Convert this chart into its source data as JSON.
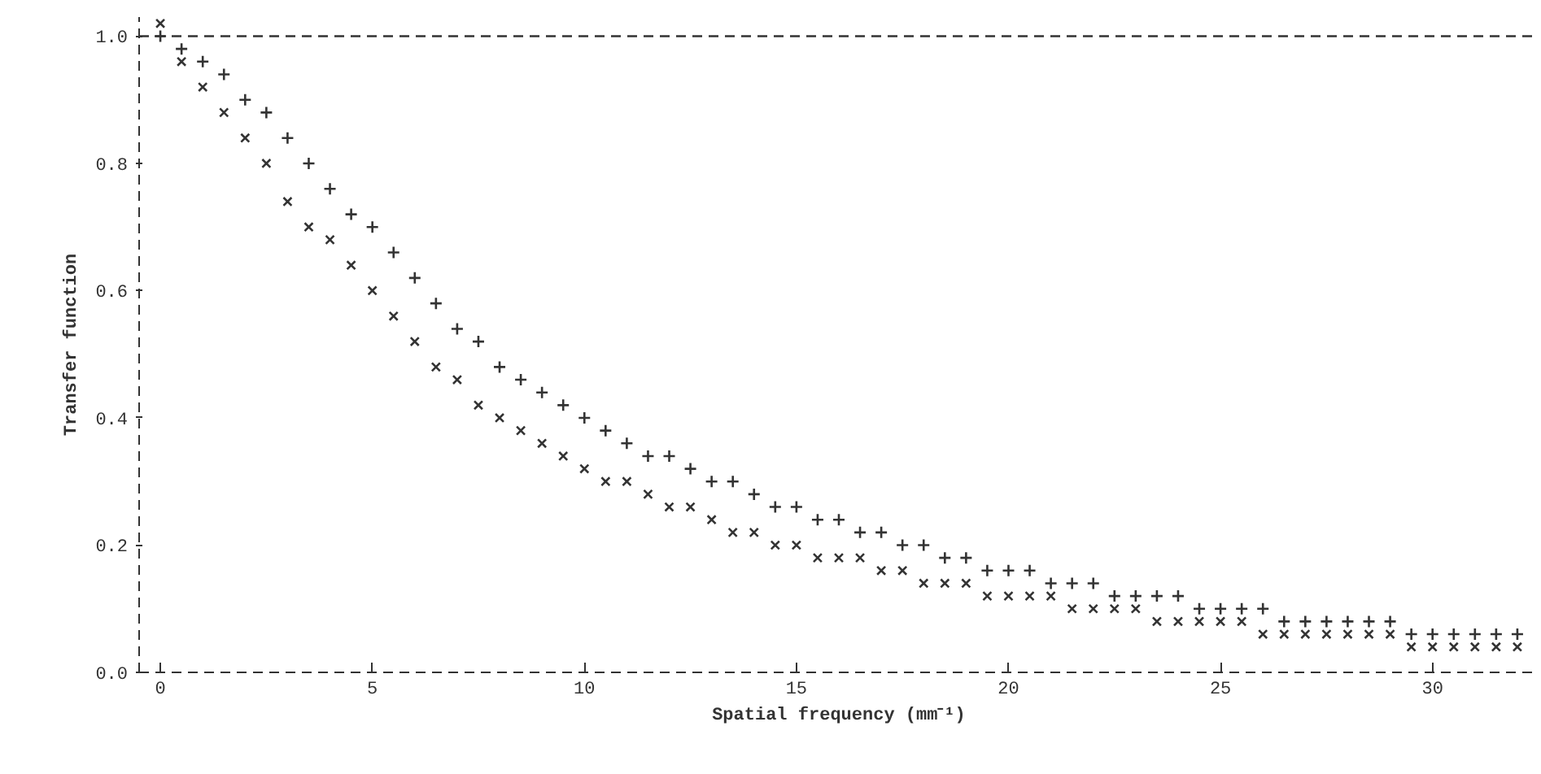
{
  "chart_data": {
    "type": "scatter",
    "xlabel": "Spatial frequency (mm⁻¹)",
    "ylabel": "Transfer function",
    "x": [
      0,
      0.5,
      1,
      1.5,
      2,
      2.5,
      3,
      3.5,
      4,
      4.5,
      5,
      5.5,
      6,
      6.5,
      7,
      7.5,
      8,
      8.5,
      9,
      9.5,
      10,
      10.5,
      11,
      11.5,
      12,
      12.5,
      13,
      13.5,
      14,
      14.5,
      15,
      15.5,
      16,
      16.5,
      17,
      17.5,
      18,
      18.5,
      19,
      19.5,
      20,
      20.5,
      21,
      21.5,
      22,
      22.5,
      23,
      23.5,
      24,
      24.5,
      25,
      25.5,
      26,
      26.5,
      27,
      27.5,
      28,
      28.5,
      29,
      29.5,
      30,
      30.5,
      31,
      31.5,
      32
    ],
    "series": [
      {
        "color": "#333333",
        "marker": "cross",
        "values": [
          1.0,
          0.98,
          0.96,
          0.94,
          0.9,
          0.88,
          0.84,
          0.8,
          0.76,
          0.72,
          0.7,
          0.66,
          0.62,
          0.58,
          0.54,
          0.52,
          0.48,
          0.46,
          0.44,
          0.42,
          0.4,
          0.38,
          0.36,
          0.34,
          0.34,
          0.32,
          0.3,
          0.3,
          0.28,
          0.26,
          0.26,
          0.24,
          0.24,
          0.22,
          0.22,
          0.2,
          0.2,
          0.18,
          0.18,
          0.16,
          0.16,
          0.16,
          0.14,
          0.14,
          0.14,
          0.12,
          0.12,
          0.12,
          0.12,
          0.1,
          0.1,
          0.1,
          0.1,
          0.08,
          0.08,
          0.08,
          0.08,
          0.08,
          0.08,
          0.06,
          0.06,
          0.06,
          0.06,
          0.06,
          0.06
        ]
      },
      {
        "color": "#333333",
        "marker": "x",
        "values": [
          1.02,
          0.96,
          0.92,
          0.88,
          0.84,
          0.8,
          0.74,
          0.7,
          0.68,
          0.64,
          0.6,
          0.56,
          0.52,
          0.48,
          0.46,
          0.42,
          0.4,
          0.38,
          0.36,
          0.34,
          0.32,
          0.3,
          0.3,
          0.28,
          0.26,
          0.26,
          0.24,
          0.22,
          0.22,
          0.2,
          0.2,
          0.18,
          0.18,
          0.18,
          0.16,
          0.16,
          0.14,
          0.14,
          0.14,
          0.12,
          0.12,
          0.12,
          0.12,
          0.1,
          0.1,
          0.1,
          0.1,
          0.08,
          0.08,
          0.08,
          0.08,
          0.08,
          0.06,
          0.06,
          0.06,
          0.06,
          0.06,
          0.06,
          0.06,
          0.04,
          0.04,
          0.04,
          0.04,
          0.04,
          0.04
        ]
      }
    ],
    "xlim": [
      -0.5,
      32.5
    ],
    "ylim": [
      0,
      1.03
    ],
    "xticks": [
      0,
      5,
      10,
      15,
      20,
      25,
      30
    ],
    "yticks": [
      {
        "value": 0,
        "label": "0.0"
      },
      {
        "value": 0.2,
        "label": "0.2"
      },
      {
        "value": 0.4,
        "label": "0.4"
      },
      {
        "value": 0.6,
        "label": "0.6"
      },
      {
        "value": 0.8,
        "label": "0.8"
      },
      {
        "value": 1.0,
        "label": "1.0"
      }
    ],
    "ref_lines": [
      {
        "axis": "y",
        "value": 1.0,
        "color": "#333333",
        "line_style": "dashed"
      }
    ],
    "grid": false
  }
}
